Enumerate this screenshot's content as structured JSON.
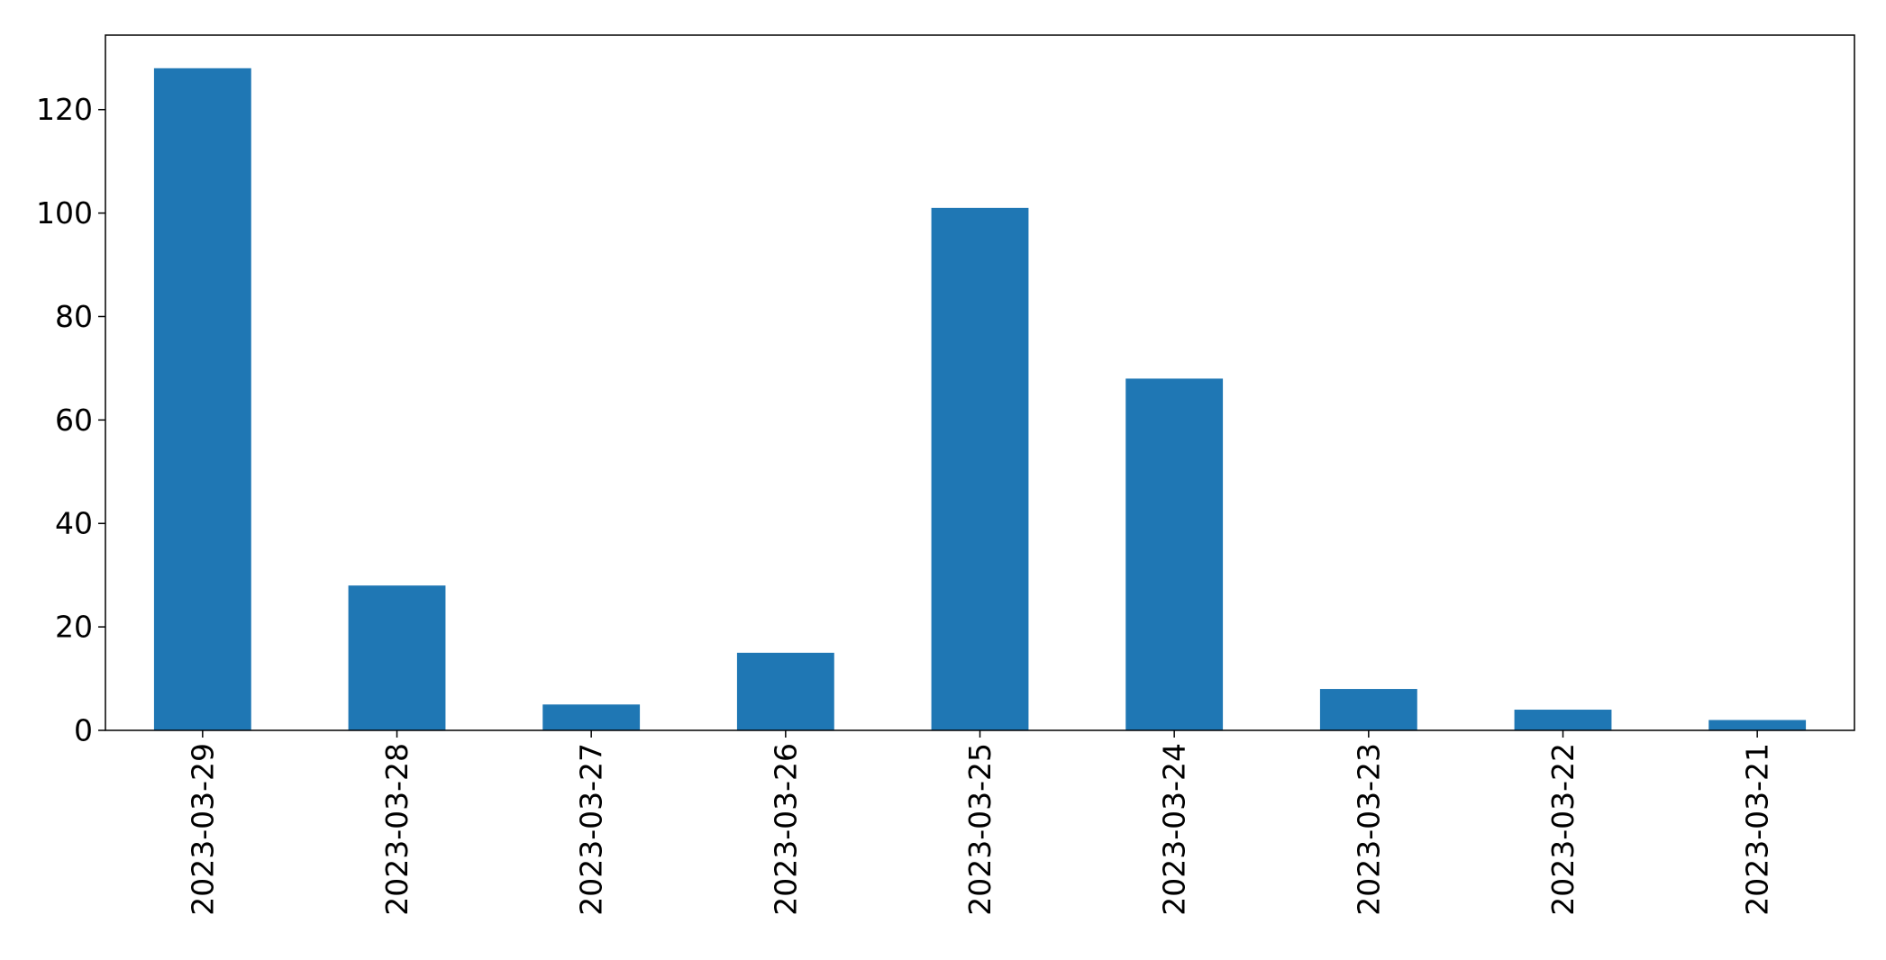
{
  "chart_data": {
    "type": "bar",
    "categories": [
      "2023-03-29",
      "2023-03-28",
      "2023-03-27",
      "2023-03-26",
      "2023-03-25",
      "2023-03-24",
      "2023-03-23",
      "2023-03-22",
      "2023-03-21"
    ],
    "values": [
      128,
      28,
      5,
      15,
      101,
      68,
      8,
      4,
      2
    ],
    "title": "",
    "xlabel": "",
    "ylabel": "",
    "ylim": [
      0,
      134.4
    ],
    "yticks": [
      "0",
      "20",
      "40",
      "60",
      "80",
      "100",
      "120"
    ],
    "bar_color": "#1f77b4",
    "grid": false,
    "legend": "none",
    "x_tick_rotation": "vertical"
  }
}
